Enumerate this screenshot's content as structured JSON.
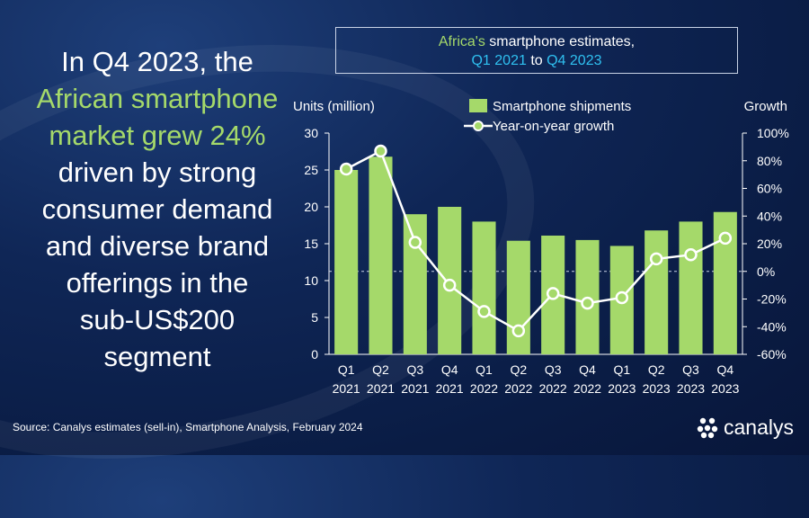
{
  "headline": {
    "line1": "In Q4 2023, the",
    "line2": "African smartphone",
    "line3": "market grew 24%",
    "line4": "driven by strong",
    "line5": "consumer demand",
    "line6": "and diverse brand",
    "line7": "offerings in the",
    "line8": "sub-US$200",
    "line9": "segment"
  },
  "title_box": {
    "part1": "Africa's",
    "part2": " smartphone estimates,",
    "part3": "Q1 2021",
    "part4": " to ",
    "part5": "Q4 2023"
  },
  "source": "Source: Canalys estimates (sell-in), Smartphone Analysis, February 2024",
  "brand": {
    "name": "canalys",
    "icon": "canalys-logo-icon"
  },
  "colors": {
    "bar": "#a5d96a",
    "line": "#ffffff",
    "marker_fill": "#a5d96a",
    "accent_blue": "#2fc0f0"
  },
  "chart_data": {
    "type": "bar+line",
    "title": "Africa's smartphone estimates, Q1 2021 to Q4 2023",
    "categories": [
      [
        "Q1",
        "2021"
      ],
      [
        "Q2",
        "2021"
      ],
      [
        "Q3",
        "2021"
      ],
      [
        "Q4",
        "2021"
      ],
      [
        "Q1",
        "2022"
      ],
      [
        "Q2",
        "2022"
      ],
      [
        "Q3",
        "2022"
      ],
      [
        "Q4",
        "2022"
      ],
      [
        "Q1",
        "2023"
      ],
      [
        "Q2",
        "2023"
      ],
      [
        "Q3",
        "2023"
      ],
      [
        "Q4",
        "2023"
      ]
    ],
    "series": [
      {
        "name": "Smartphone shipments",
        "type": "bar",
        "axis": "left",
        "values": [
          25.0,
          26.8,
          19.0,
          20.0,
          18.0,
          15.4,
          16.1,
          15.5,
          14.7,
          16.8,
          18.0,
          19.3
        ]
      },
      {
        "name": "Year-on-year growth",
        "type": "line",
        "axis": "right",
        "values": [
          74,
          87,
          21,
          -10,
          -29,
          -43,
          -16,
          -23,
          -19,
          9,
          12,
          24
        ]
      }
    ],
    "ylabel_left": "Units (million)",
    "ylabel_right": "Growth",
    "ylim_left": [
      0,
      30
    ],
    "yticks_left": [
      "0",
      "5",
      "10",
      "15",
      "20",
      "25",
      "30"
    ],
    "ylim_right": [
      -60,
      100
    ],
    "yticks_right": [
      "-60%",
      "-40%",
      "-20%",
      "0%",
      "20%",
      "40%",
      "60%",
      "80%",
      "100%"
    ],
    "zero_line": true,
    "legend_position": "top"
  }
}
